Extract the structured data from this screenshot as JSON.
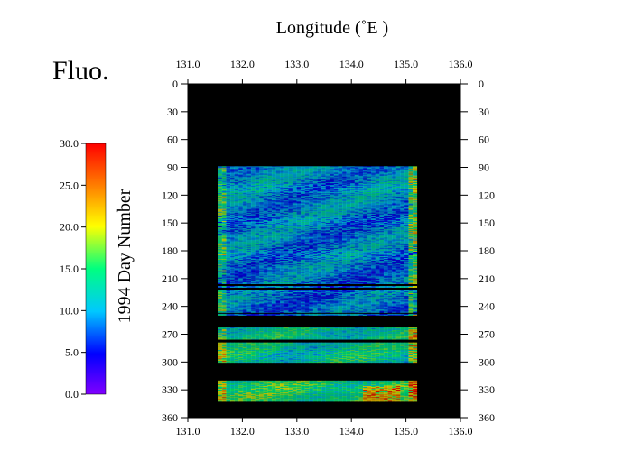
{
  "chart_data": {
    "type": "heatmap",
    "title": "Fluo.",
    "xlabel": "Longitude (˚E )",
    "ylabel": "1994  Day Number",
    "x_ticks": [
      "131.0",
      "132.0",
      "133.0",
      "134.0",
      "135.0",
      "136.0"
    ],
    "y_ticks": [
      "0",
      "30",
      "60",
      "90",
      "120",
      "150",
      "180",
      "210",
      "240",
      "270",
      "300",
      "330",
      "360"
    ],
    "xlim": [
      131.0,
      136.0
    ],
    "ylim": [
      0,
      360
    ],
    "colorbar": {
      "range": [
        0.0,
        30.0
      ],
      "ticks": [
        "0.0",
        "5.0",
        "10.0",
        "15.0",
        "20.0",
        "25.0",
        "30.0"
      ],
      "colors": [
        "#8000ff",
        "#0000ff",
        "#00c8ff",
        "#00ff80",
        "#ffff00",
        "#ff8000",
        "#ff0000"
      ]
    },
    "background_color": "#000000",
    "track_lon_range": [
      131.55,
      135.2
    ],
    "observed_days": [
      [
        89,
        215
      ],
      [
        218,
        219
      ],
      [
        222,
        246
      ],
      [
        248,
        249
      ],
      [
        263,
        275
      ],
      [
        279,
        300
      ],
      [
        320,
        342
      ]
    ],
    "daily_mean_fluorescence": [
      {
        "day_range": [
          89,
          140
        ],
        "value": 9.5
      },
      {
        "day_range": [
          140,
          200
        ],
        "value": 9.0
      },
      {
        "day_range": [
          200,
          250
        ],
        "value": 8.5
      },
      {
        "day_range": [
          263,
          300
        ],
        "value": 13.0
      },
      {
        "day_range": [
          320,
          342
        ],
        "value": 15.0
      }
    ]
  }
}
